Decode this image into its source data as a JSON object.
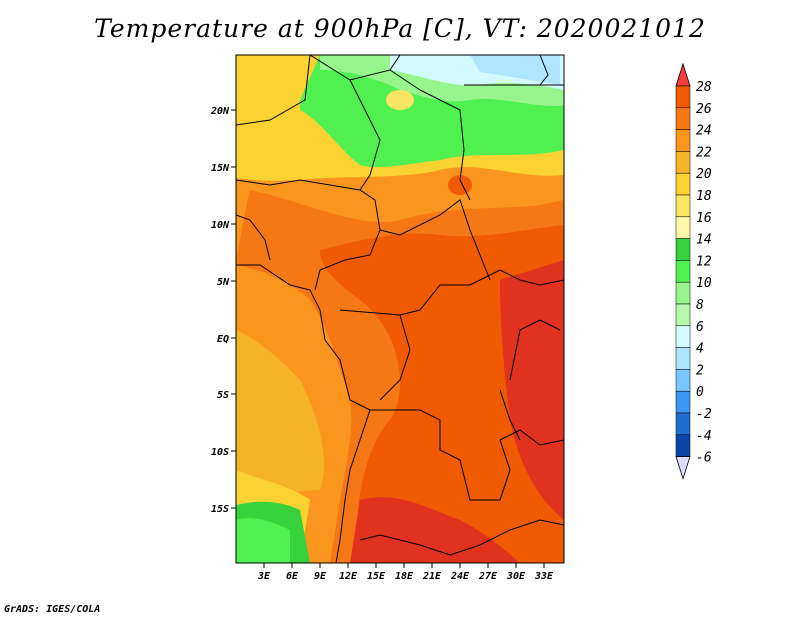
{
  "title": "Temperature at 900hPa [C], VT: 2020021012",
  "footer": "GrADS: IGES/COLA",
  "map": {
    "lat_ticks": [
      "20N",
      "15N",
      "10N",
      "5N",
      "EQ",
      "5S",
      "10S",
      "15S"
    ],
    "lon_ticks": [
      "3E",
      "6E",
      "9E",
      "12E",
      "15E",
      "18E",
      "21E",
      "24E",
      "27E",
      "30E",
      "33E"
    ]
  },
  "colorbar": {
    "levels": [
      "28",
      "26",
      "24",
      "22",
      "20",
      "18",
      "16",
      "14",
      "12",
      "10",
      "8",
      "6",
      "4",
      "2",
      "0",
      "-2",
      "-4",
      "-6"
    ],
    "colors": [
      "#fa3c3c",
      "#f05a00",
      "#f57814",
      "#fa961e",
      "#f5b428",
      "#fad232",
      "#fae664",
      "#fffaaa",
      "#37d23c",
      "#50f050",
      "#96f58c",
      "#b4faaa",
      "#d2faff",
      "#afe6ff",
      "#78c8ff",
      "#3c96f5",
      "#1e6ed2",
      "#0a46aa",
      "#00288c"
    ]
  }
}
